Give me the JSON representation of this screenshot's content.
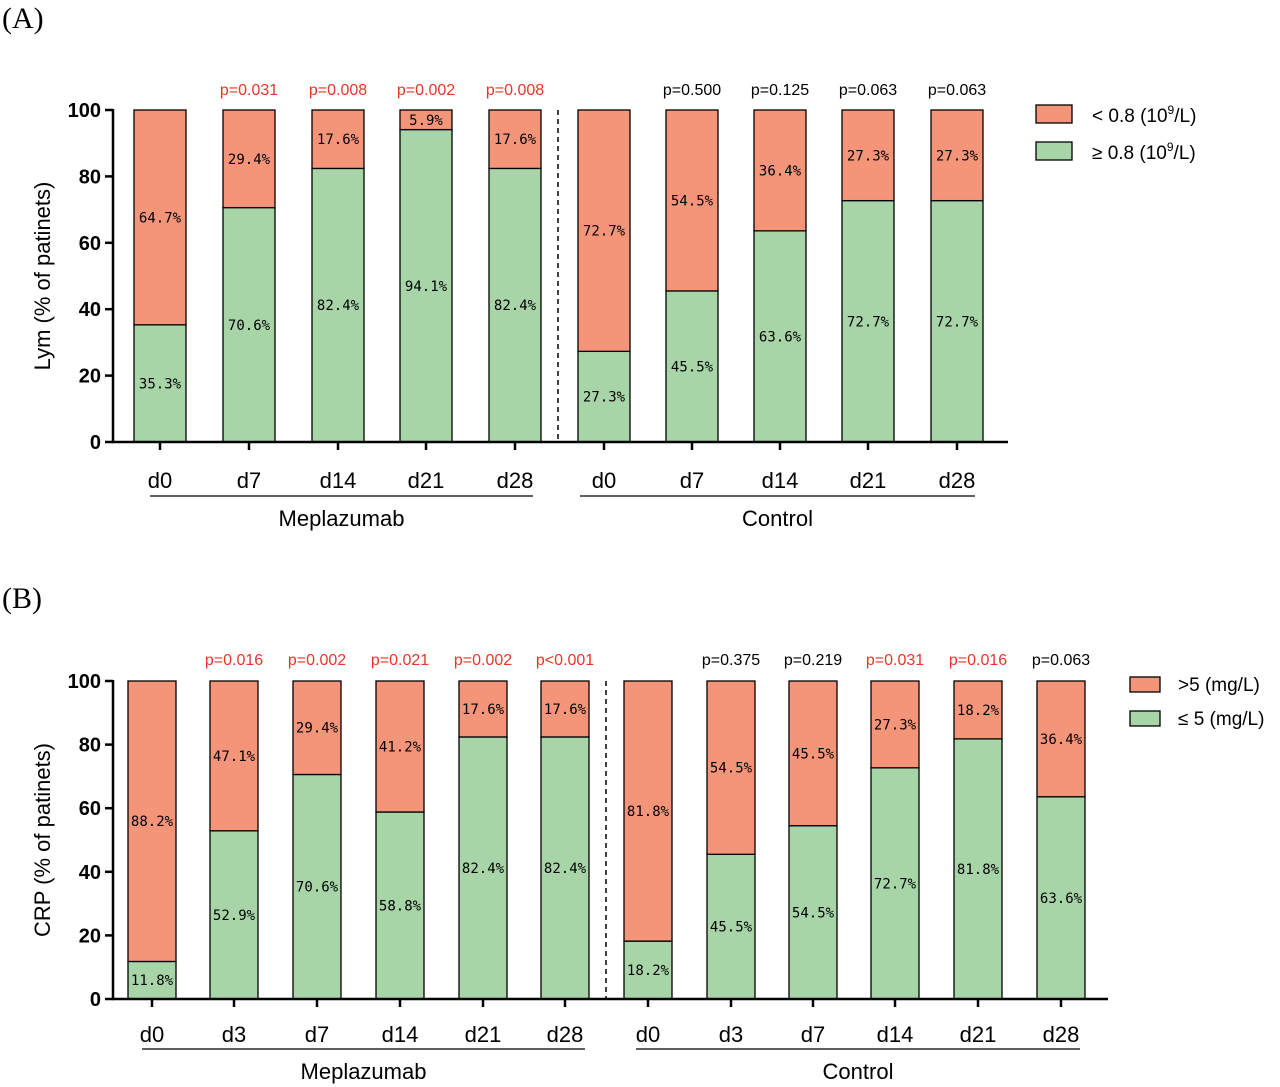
{
  "panels": {
    "a": {
      "label": "(A)"
    },
    "b": {
      "label": "(B)"
    }
  },
  "colors": {
    "low": "#f4957a",
    "high": "#a8d5a8",
    "sig": "#e8352a",
    "nonsig": "#000000"
  },
  "chart_data": [
    {
      "type": "bar",
      "stacked": true,
      "ylabel": "Lym (% of patinets)",
      "ylim": [
        0,
        100
      ],
      "yticks": [
        0,
        20,
        40,
        60,
        80,
        100
      ],
      "groups": [
        {
          "name": "Meplazumab",
          "categories": [
            "d0",
            "d7",
            "d14",
            "d21",
            "d28"
          ]
        },
        {
          "name": "Control",
          "categories": [
            "d0",
            "d7",
            "d14",
            "d21",
            "d28"
          ]
        }
      ],
      "series": [
        {
          "name": "≥  0.8 (10⁹/L)",
          "color": "#a8d5a8",
          "values": [
            35.3,
            70.6,
            82.4,
            94.1,
            82.4,
            27.3,
            45.5,
            63.6,
            72.7,
            72.7
          ]
        },
        {
          "name": "< 0.8 (10⁹/L)",
          "color": "#f4957a",
          "values": [
            64.7,
            29.4,
            17.6,
            5.9,
            17.6,
            72.7,
            54.5,
            36.4,
            27.3,
            27.3
          ]
        }
      ],
      "pvalues": [
        "",
        "p=0.031",
        "p=0.008",
        "p=0.002",
        "p=0.008",
        "",
        "p=0.500",
        "p=0.125",
        "p=0.063",
        "p=0.063"
      ],
      "pvalue_significant": [
        false,
        true,
        true,
        true,
        true,
        false,
        false,
        false,
        false,
        false
      ],
      "legend": {
        "position": "right",
        "items": [
          "< 0.8 (10⁹/L)",
          "≥  0.8 (10⁹/L)"
        ]
      }
    },
    {
      "type": "bar",
      "stacked": true,
      "ylabel": "CRP (% of patinets)",
      "ylim": [
        0,
        100
      ],
      "yticks": [
        0,
        20,
        40,
        60,
        80,
        100
      ],
      "groups": [
        {
          "name": "Meplazumab",
          "categories": [
            "d0",
            "d3",
            "d7",
            "d14",
            "d21",
            "d28"
          ]
        },
        {
          "name": "Control",
          "categories": [
            "d0",
            "d3",
            "d7",
            "d14",
            "d21",
            "d28"
          ]
        }
      ],
      "series": [
        {
          "name": "≤ 5 (mg/L)",
          "color": "#a8d5a8",
          "values": [
            11.8,
            52.9,
            70.6,
            58.8,
            82.4,
            82.4,
            18.2,
            45.5,
            54.5,
            72.7,
            81.8,
            63.6
          ]
        },
        {
          "name": ">5 (mg/L)",
          "color": "#f4957a",
          "values": [
            88.2,
            47.1,
            29.4,
            41.2,
            17.6,
            17.6,
            81.8,
            54.5,
            45.5,
            27.3,
            18.2,
            36.4
          ]
        }
      ],
      "pvalues": [
        "",
        "p=0.016",
        "p=0.002",
        "p=0.021",
        "p=0.002",
        "p<0.001",
        "",
        "p=0.375",
        "p=0.219",
        "p=0.031",
        "p=0.016",
        "p=0.063"
      ],
      "pvalue_significant": [
        false,
        true,
        true,
        true,
        true,
        true,
        false,
        false,
        false,
        true,
        true,
        false
      ],
      "legend": {
        "position": "right",
        "items": [
          ">5 (mg/L)",
          "≤ 5 (mg/L)"
        ]
      }
    }
  ]
}
